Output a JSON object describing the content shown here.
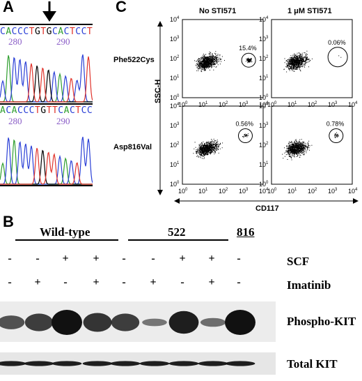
{
  "panel_a": {
    "letter": "A",
    "seq1": [
      "C",
      "A",
      "C",
      "C",
      "C",
      "T",
      "G",
      "T",
      "G",
      "C",
      "A",
      "C",
      "T",
      "C",
      "C",
      "T"
    ],
    "seq1_numbers": [
      "280",
      "290"
    ],
    "seq2": [
      "A",
      "C",
      "A",
      "C",
      "C",
      "C",
      "T",
      "G",
      "T",
      "T",
      "C",
      "A",
      "C",
      "T",
      "C",
      "C"
    ],
    "seq2_numbers": [
      "280",
      "290"
    ],
    "base_colors": {
      "A": "#2e9e2e",
      "C": "#2a3fd6",
      "G": "#000000",
      "T": "#e0332b"
    }
  },
  "panel_c": {
    "letter": "C",
    "col_headers": [
      "No STI571",
      "1 μM STI571"
    ],
    "row_labels": [
      "Phe522Cys",
      "Asp816Val"
    ],
    "y_axis_label": "SSC-H",
    "x_axis_label": "CD117",
    "tick_exponents": [
      "0",
      "1",
      "2",
      "3",
      "4"
    ],
    "tick_base": "10",
    "percentages": [
      [
        "15.4%",
        "0.06%"
      ],
      [
        "0.56%",
        "0.78%"
      ]
    ]
  },
  "panel_b": {
    "letter": "B",
    "groups": [
      "Wild-type",
      "522",
      "816"
    ],
    "scf_label": "SCF",
    "imatinib_label": "Imatinib",
    "scf": [
      "-",
      "-",
      "+",
      "+",
      "-",
      "-",
      "+",
      "+",
      "-"
    ],
    "imatinib": [
      "-",
      "+",
      "-",
      "+",
      "-",
      "+",
      "-",
      "+",
      "-"
    ],
    "phospho_label": "Phospho-KIT",
    "total_label": "Total KIT",
    "phospho_intensity": [
      0.55,
      0.7,
      1.0,
      0.75,
      0.7,
      0.3,
      0.9,
      0.35,
      1.0
    ],
    "total_intensity": [
      0.9,
      0.9,
      0.9,
      0.9,
      0.9,
      0.9,
      0.9,
      0.9,
      0.9
    ]
  }
}
